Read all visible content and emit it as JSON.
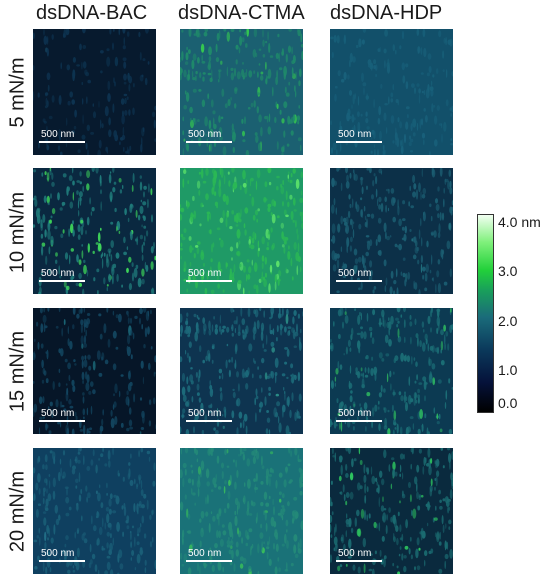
{
  "columns": [
    "dsDNA-BAC",
    "dsDNA-CTMA",
    "dsDNA-HDP"
  ],
  "rows": [
    "5 mN/m",
    "10 mN/m",
    "15 mN/m",
    "20 mN/m"
  ],
  "scale_bar_label": "500 nm",
  "colorbar": {
    "unit_label": "4.0 nm",
    "ticks": [
      "3.0",
      "2.0",
      "1.0",
      "0.0"
    ]
  },
  "colors": {
    "dark": "#071a2e",
    "teal": "#1b5e6e",
    "green": "#2ad14a"
  }
}
